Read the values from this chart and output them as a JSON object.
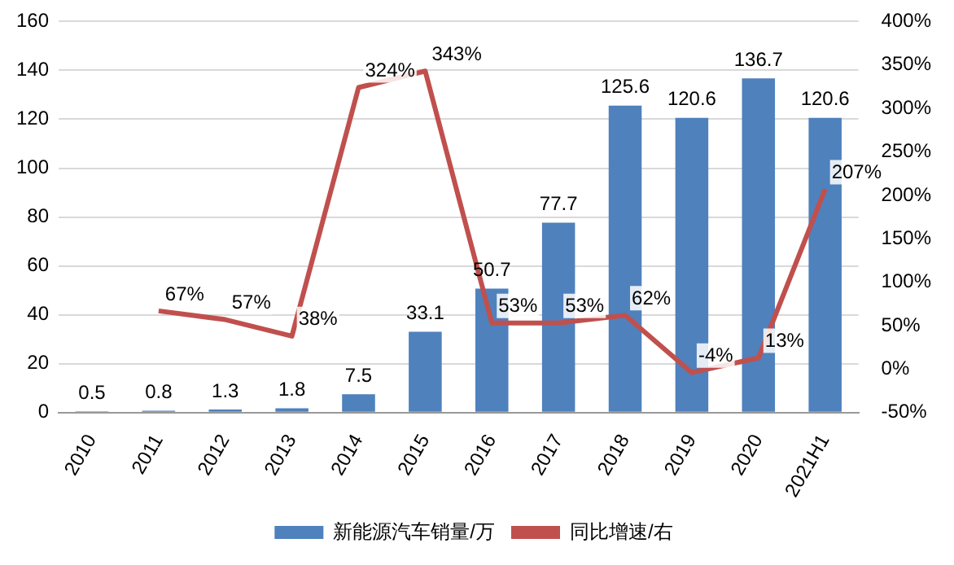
{
  "chart_data": {
    "type": "bar",
    "categories": [
      "2010",
      "2011",
      "2012",
      "2013",
      "2014",
      "2015",
      "2016",
      "2017",
      "2018",
      "2019",
      "2020",
      "2021H1"
    ],
    "series": [
      {
        "name": "新能源汽车销量/万",
        "color": "#4f81bd",
        "values": [
          0.5,
          0.8,
          1.3,
          1.8,
          7.5,
          33.1,
          50.7,
          77.7,
          125.6,
          120.6,
          136.7,
          120.6
        ]
      },
      {
        "name": "同比增速/右",
        "type": "line",
        "axis": "y2",
        "color": "#c0504d",
        "marker": "none",
        "values": [
          null,
          67,
          57,
          38,
          324,
          343,
          53,
          53,
          62,
          -4,
          13,
          207
        ],
        "value_labels": [
          null,
          "67%",
          "57%",
          "38%",
          "324%",
          "343%",
          "53%",
          "53%",
          "62%",
          "-4%",
          "13%",
          "207%"
        ]
      }
    ],
    "ylim": [
      0,
      160
    ],
    "yticks": [
      0,
      20,
      40,
      60,
      80,
      100,
      120,
      140,
      160
    ],
    "y2lim": [
      -50,
      400
    ],
    "y2ticks": [
      {
        "value": -50,
        "label": "-50%"
      },
      {
        "value": 0,
        "label": "0%"
      },
      {
        "value": 50,
        "label": "50%"
      },
      {
        "value": 100,
        "label": "100%"
      },
      {
        "value": 150,
        "label": "150%"
      },
      {
        "value": 200,
        "label": "200%"
      },
      {
        "value": 250,
        "label": "250%"
      },
      {
        "value": 300,
        "label": "300%"
      },
      {
        "value": 350,
        "label": "350%"
      },
      {
        "value": 400,
        "label": "400%"
      }
    ],
    "grid": "y",
    "legend": "bottom",
    "data_labels": true
  }
}
